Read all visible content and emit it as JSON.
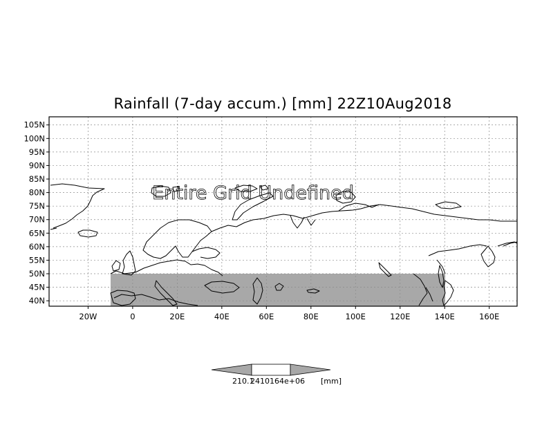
{
  "title": "Rainfall (7-day accum.) [mm] 22Z10Aug2018",
  "overlay_message": "Entire Grid Undefined",
  "y_axis_labels": [
    "105N",
    "100N",
    "95N",
    "90N",
    "85N",
    "80N",
    "75N",
    "70N",
    "65N",
    "60N",
    "55N",
    "50N",
    "45N",
    "40N"
  ],
  "x_axis_labels": [
    "20W",
    "0",
    "20E",
    "40E",
    "60E",
    "80E",
    "100E",
    "120E",
    "140E",
    "160E"
  ],
  "colorbar": {
    "label_left": "210.1",
    "label_middle": "2410164e+06",
    "label_right": "[mm]",
    "fill_colors": [
      "#a8a8a8",
      "#ffffff",
      "#a8a8a8"
    ]
  },
  "colors": {
    "undefined_shading": "#a8a8a8",
    "frame": "#000000",
    "grid": "#8a8a8a",
    "background": "#ffffff"
  }
}
